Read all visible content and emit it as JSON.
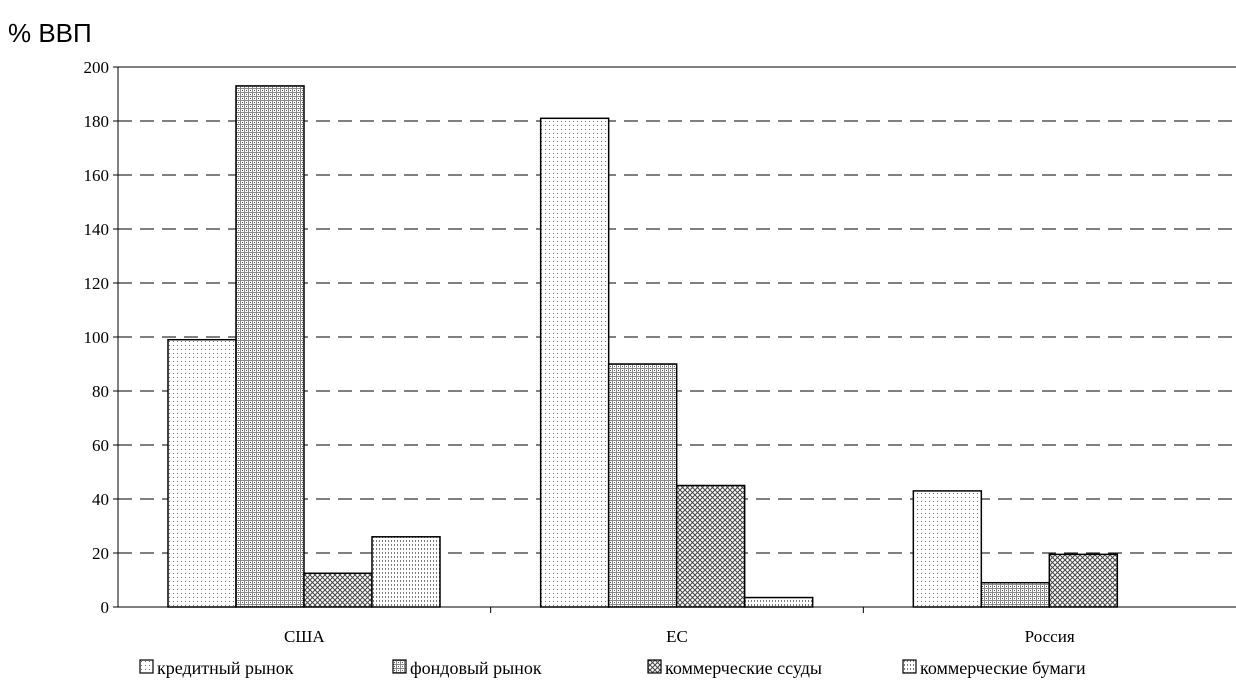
{
  "chart_data": {
    "type": "bar",
    "ylabel": "% ВВП",
    "xlabel": "",
    "ylim": [
      0,
      200
    ],
    "yticks": [
      0,
      20,
      40,
      60,
      80,
      100,
      120,
      140,
      160,
      180,
      200
    ],
    "grid": "horizontal dashed",
    "legend_position": "bottom",
    "categories": [
      "США",
      "ЕС",
      "Россия"
    ],
    "series": [
      {
        "name": "кредитный рынок",
        "pattern": "fine-dots",
        "values": [
          99,
          181,
          43
        ]
      },
      {
        "name": "фондовый рынок",
        "pattern": "dense-grid",
        "values": [
          193,
          90,
          9
        ]
      },
      {
        "name": "коммерческие ссуды",
        "pattern": "crosshatch",
        "values": [
          12.5,
          45,
          19.5
        ]
      },
      {
        "name": "коммерческие бумаги",
        "pattern": "vertical-dots",
        "values": [
          26,
          3.5,
          null
        ]
      }
    ]
  }
}
